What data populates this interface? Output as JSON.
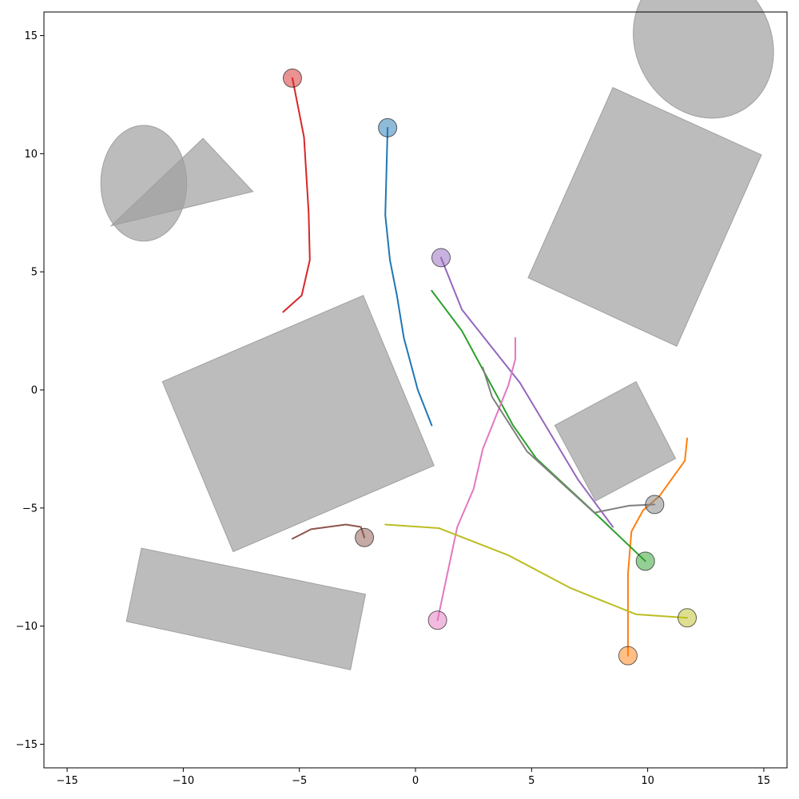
{
  "chart_data": {
    "type": "scatter",
    "title": "",
    "xlabel": "",
    "ylabel": "",
    "xlim": [
      -16,
      16
    ],
    "ylim": [
      -16,
      16
    ],
    "grid": false,
    "xticks": [
      -15,
      -10,
      -5,
      0,
      5,
      10,
      15
    ],
    "yticks": [
      -15,
      -10,
      -5,
      0,
      5,
      10,
      15
    ],
    "xtick_labels": [
      "−15",
      "−10",
      "−5",
      "0",
      "5",
      "10",
      "15"
    ],
    "ytick_labels": [
      "−15",
      "−10",
      "−5",
      "0",
      "5",
      "10",
      "15"
    ],
    "obstacle_color": "#a0a0a0",
    "obstacles": [
      {
        "shape": "polygon",
        "points": [
          [
            -10.9,
            0.35
          ],
          [
            -2.25,
            4.0
          ],
          [
            0.8,
            -3.2
          ],
          [
            -7.85,
            -6.85
          ]
        ]
      },
      {
        "shape": "polygon",
        "points": [
          [
            4.85,
            4.75
          ],
          [
            8.5,
            12.8
          ],
          [
            14.9,
            9.95
          ],
          [
            11.25,
            1.85
          ]
        ]
      },
      {
        "shape": "polygon",
        "points": [
          [
            6.0,
            -1.5
          ],
          [
            9.5,
            0.35
          ],
          [
            11.2,
            -2.9
          ],
          [
            7.75,
            -4.7
          ]
        ]
      },
      {
        "shape": "polygon",
        "points": [
          [
            -11.8,
            -6.7
          ],
          [
            -2.15,
            -8.65
          ],
          [
            -2.8,
            -11.85
          ],
          [
            -12.45,
            -9.8
          ]
        ]
      },
      {
        "shape": "polygon",
        "points": [
          [
            -13.1,
            6.95
          ],
          [
            -9.15,
            10.65
          ],
          [
            -7.0,
            8.4
          ]
        ]
      },
      {
        "shape": "ellipse",
        "center": [
          -11.7,
          8.75
        ],
        "rx": 1.85,
        "ry": 2.45,
        "angle": 0
      },
      {
        "shape": "ellipse",
        "center": [
          12.4,
          14.7
        ],
        "rx": 2.9,
        "ry": 3.3,
        "angle": 30
      }
    ],
    "series": [
      {
        "color": "#1f77b4",
        "start": [
          -1.2,
          11.1
        ],
        "path": [
          [
            -1.2,
            11.1
          ],
          [
            -1.3,
            7.4
          ],
          [
            -1.1,
            5.5
          ],
          [
            -0.8,
            4.0
          ],
          [
            -0.5,
            2.2
          ],
          [
            0.1,
            0.0
          ],
          [
            0.7,
            -1.5
          ]
        ]
      },
      {
        "color": "#ff7f0e",
        "start": [
          9.15,
          -11.25
        ],
        "path": [
          [
            9.15,
            -11.25
          ],
          [
            9.15,
            -7.8
          ],
          [
            9.3,
            -6.0
          ],
          [
            9.8,
            -5.1
          ],
          [
            10.5,
            -4.5
          ],
          [
            11.6,
            -3.0
          ],
          [
            11.7,
            -2.05
          ]
        ]
      },
      {
        "color": "#2ca02c",
        "start": [
          9.9,
          -7.25
        ],
        "path": [
          [
            9.9,
            -7.25
          ],
          [
            7.5,
            -5.0
          ],
          [
            5.2,
            -2.9
          ],
          [
            4.2,
            -1.5
          ],
          [
            2.0,
            2.5
          ],
          [
            0.7,
            4.2
          ]
        ]
      },
      {
        "color": "#d62728",
        "start": [
          -5.3,
          13.2
        ],
        "path": [
          [
            -5.3,
            13.2
          ],
          [
            -4.8,
            10.7
          ],
          [
            -4.6,
            7.5
          ],
          [
            -4.55,
            5.5
          ],
          [
            -4.9,
            4.0
          ],
          [
            -5.7,
            3.3
          ]
        ]
      },
      {
        "color": "#9467bd",
        "start": [
          1.1,
          5.6
        ],
        "path": [
          [
            1.1,
            5.6
          ],
          [
            2.0,
            3.4
          ],
          [
            4.5,
            0.3
          ],
          [
            7.0,
            -3.8
          ],
          [
            8.5,
            -5.8
          ]
        ]
      },
      {
        "color": "#8c564b",
        "start": [
          -2.2,
          -6.25
        ],
        "path": [
          [
            -2.2,
            -6.25
          ],
          [
            -2.35,
            -5.8
          ],
          [
            -3.0,
            -5.7
          ],
          [
            -4.5,
            -5.9
          ],
          [
            -5.3,
            -6.3
          ]
        ]
      },
      {
        "color": "#e377c2",
        "start": [
          0.95,
          -9.75
        ],
        "path": [
          [
            0.95,
            -9.75
          ],
          [
            1.8,
            -5.8
          ],
          [
            2.5,
            -4.2
          ],
          [
            2.9,
            -2.5
          ],
          [
            4.0,
            0.2
          ],
          [
            4.3,
            1.3
          ],
          [
            4.3,
            2.2
          ]
        ]
      },
      {
        "color": "#7f7f7f",
        "start": [
          10.3,
          -4.85
        ],
        "path": [
          [
            10.3,
            -4.85
          ],
          [
            9.2,
            -4.9
          ],
          [
            7.7,
            -5.2
          ],
          [
            4.8,
            -2.6
          ],
          [
            3.3,
            -0.3
          ],
          [
            2.9,
            0.95
          ]
        ]
      },
      {
        "color": "#bcbd22",
        "start": [
          11.7,
          -9.65
        ],
        "path": [
          [
            11.7,
            -9.65
          ],
          [
            9.5,
            -9.5
          ],
          [
            6.7,
            -8.4
          ],
          [
            4.0,
            -7.0
          ],
          [
            1.0,
            -5.85
          ],
          [
            -1.3,
            -5.7
          ]
        ]
      }
    ]
  }
}
